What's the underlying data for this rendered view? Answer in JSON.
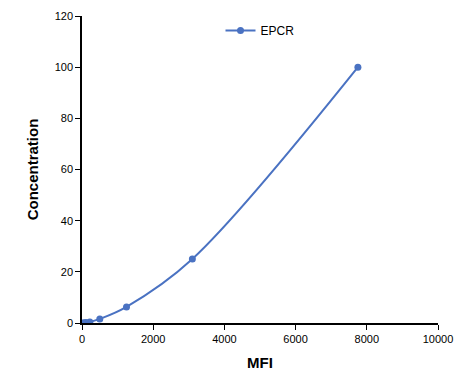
{
  "chart_data": {
    "type": "line",
    "x_label": "MFI",
    "y_label": "Concentration",
    "series": [
      {
        "name": "EPCR",
        "color": "#4a72c2",
        "marker": "circle",
        "line_style": "solid",
        "x": [
          40,
          110,
          220,
          500,
          1250,
          3100,
          7750
        ],
        "values": [
          0.1,
          0.2,
          0.4,
          1.6,
          6.3,
          25,
          100
        ]
      }
    ],
    "xlim": [
      0,
      10000
    ],
    "xticks": [
      0,
      2000,
      4000,
      6000,
      8000,
      10000
    ],
    "ylim": [
      0,
      120
    ],
    "yticks": [
      0,
      20,
      40,
      60,
      80,
      100,
      120
    ],
    "grid": false,
    "legend": "top"
  }
}
